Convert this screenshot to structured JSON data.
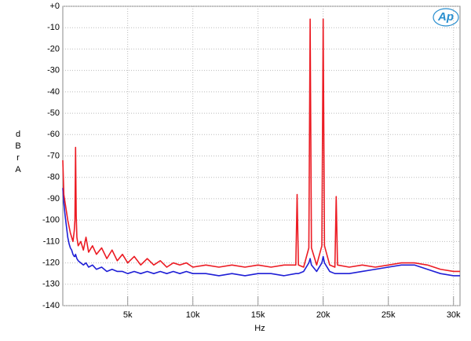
{
  "chart_data": {
    "type": "line",
    "xlabel": "Hz",
    "ylabel": "dBr A",
    "logo": "Ap",
    "x": [
      20,
      100,
      200,
      300,
      400,
      500,
      600,
      700,
      800,
      900,
      950,
      1000,
      1050,
      1100,
      1200,
      1400,
      1600,
      1800,
      2000,
      2300,
      2600,
      3000,
      3400,
      3800,
      4200,
      4600,
      5000,
      5500,
      6000,
      6500,
      7000,
      7500,
      8000,
      8500,
      9000,
      9500,
      10000,
      11000,
      12000,
      13000,
      14000,
      15000,
      16000,
      17000,
      17900,
      18000,
      18100,
      18500,
      18900,
      19000,
      19100,
      19500,
      19900,
      20000,
      20100,
      20500,
      20900,
      21000,
      21100,
      22000,
      23000,
      24000,
      25000,
      26000,
      27000,
      28000,
      29000,
      30000,
      30500
    ],
    "series": [
      {
        "color": "#1f1fd6",
        "values": [
          -85,
          -92,
          -98,
          -103,
          -108,
          -111,
          -113,
          -114,
          -116,
          -117,
          -117,
          -116,
          -117,
          -118,
          -119,
          -120,
          -121,
          -120,
          -122,
          -121,
          -123,
          -122,
          -124,
          -123,
          -124,
          -124,
          -125,
          -124,
          -125,
          -124,
          -125,
          -124,
          -125,
          -124,
          -125,
          -124,
          -125,
          -125,
          -126,
          -125,
          -126,
          -125,
          -125,
          -126,
          -125,
          -125,
          -125,
          -124,
          -120,
          -118,
          -121,
          -124,
          -120,
          -117,
          -120,
          -124,
          -125,
          -125,
          -125,
          -125,
          -124,
          -123,
          -122,
          -121,
          -121,
          -123,
          -125,
          -126,
          -126
        ]
      },
      {
        "color": "#ec1c24",
        "values": [
          -72,
          -88,
          -92,
          -96,
          -100,
          -103,
          -106,
          -108,
          -110,
          -105,
          -100,
          -66,
          -98,
          -108,
          -112,
          -110,
          -114,
          -108,
          -115,
          -112,
          -116,
          -113,
          -118,
          -114,
          -119,
          -116,
          -120,
          -117,
          -121,
          -118,
          -121,
          -119,
          -122,
          -120,
          -121,
          -120,
          -122,
          -121,
          -122,
          -121,
          -122,
          -121,
          -122,
          -121,
          -121,
          -88,
          -121,
          -122,
          -113,
          -6,
          -113,
          -121,
          -112,
          -6,
          -112,
          -121,
          -122,
          -89,
          -121,
          -122,
          -121,
          -122,
          -121,
          -120,
          -120,
          -121,
          -123,
          -124,
          -124
        ]
      }
    ],
    "xlim": [
      20,
      30500
    ],
    "ylim": [
      -140,
      0
    ],
    "xticks": [
      {
        "value": 5000,
        "label": "5k"
      },
      {
        "value": 10000,
        "label": "10k"
      },
      {
        "value": 15000,
        "label": "15k"
      },
      {
        "value": 20000,
        "label": "20k"
      },
      {
        "value": 25000,
        "label": "25k"
      },
      {
        "value": 30000,
        "label": "30k"
      }
    ],
    "yticks": [
      {
        "value": 0,
        "label": "+0"
      },
      -10,
      -20,
      -30,
      -40,
      -50,
      -60,
      -70,
      -80,
      -90,
      -100,
      -110,
      -120,
      -130,
      -140
    ],
    "grid": true
  }
}
